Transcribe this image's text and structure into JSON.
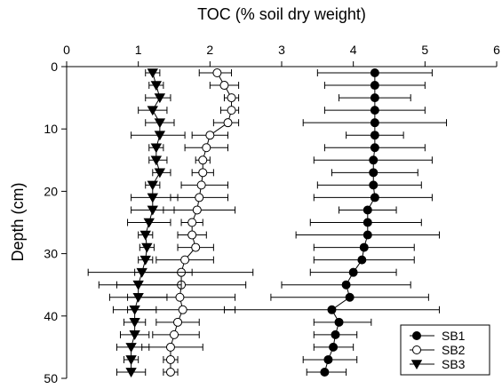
{
  "chart_data": {
    "type": "scatter",
    "xlabel": "TOC (% soil dry weight)",
    "ylabel": "Depth (cm)",
    "xlim": [
      0,
      6
    ],
    "ylim": [
      0,
      50
    ],
    "y_inverted": true,
    "x_axis_position": "top",
    "x_ticks": [
      "0",
      "1",
      "2",
      "3",
      "4",
      "5",
      "6"
    ],
    "y_ticks": [
      "0",
      "10",
      "20",
      "30",
      "40",
      "50"
    ],
    "grid": false,
    "legend_position": "bottom-right",
    "series": [
      {
        "name": "SB1",
        "marker": "filled-circle",
        "points": [
          {
            "depth": 1,
            "toc": 4.3,
            "err_low": 3.5,
            "err_high": 5.1
          },
          {
            "depth": 3,
            "toc": 4.3,
            "err_low": 3.6,
            "err_high": 5.0
          },
          {
            "depth": 5,
            "toc": 4.3,
            "err_low": 3.8,
            "err_high": 4.8
          },
          {
            "depth": 7,
            "toc": 4.3,
            "err_low": 3.6,
            "err_high": 5.0
          },
          {
            "depth": 9,
            "toc": 4.3,
            "err_low": 3.3,
            "err_high": 5.3
          },
          {
            "depth": 11,
            "toc": 4.3,
            "err_low": 3.9,
            "err_high": 4.7
          },
          {
            "depth": 13,
            "toc": 4.3,
            "err_low": 3.6,
            "err_high": 5.0
          },
          {
            "depth": 15,
            "toc": 4.28,
            "err_low": 3.45,
            "err_high": 5.1
          },
          {
            "depth": 17,
            "toc": 4.28,
            "err_low": 3.7,
            "err_high": 4.9
          },
          {
            "depth": 19,
            "toc": 4.28,
            "err_low": 3.5,
            "err_high": 4.95
          },
          {
            "depth": 21,
            "toc": 4.3,
            "err_low": 3.45,
            "err_high": 5.1
          },
          {
            "depth": 23,
            "toc": 4.2,
            "err_low": 3.8,
            "err_high": 4.6
          },
          {
            "depth": 25,
            "toc": 4.2,
            "err_low": 3.4,
            "err_high": 4.95
          },
          {
            "depth": 27,
            "toc": 4.2,
            "err_low": 3.2,
            "err_high": 5.2
          },
          {
            "depth": 29,
            "toc": 4.15,
            "err_low": 3.45,
            "err_high": 4.85
          },
          {
            "depth": 31,
            "toc": 4.12,
            "err_low": 3.45,
            "err_high": 4.85
          },
          {
            "depth": 33,
            "toc": 4.0,
            "err_low": 3.4,
            "err_high": 4.6
          },
          {
            "depth": 35,
            "toc": 3.9,
            "err_low": 3.0,
            "err_high": 4.8
          },
          {
            "depth": 37,
            "toc": 3.95,
            "err_low": 2.85,
            "err_high": 5.05
          },
          {
            "depth": 39,
            "toc": 3.7,
            "err_low": 2.2,
            "err_high": 5.2
          },
          {
            "depth": 41,
            "toc": 3.8,
            "err_low": 3.45,
            "err_high": 4.25
          },
          {
            "depth": 43,
            "toc": 3.75,
            "err_low": 3.45,
            "err_high": 4.05
          },
          {
            "depth": 45,
            "toc": 3.72,
            "err_low": 3.45,
            "err_high": 4.0
          },
          {
            "depth": 47,
            "toc": 3.65,
            "err_low": 3.3,
            "err_high": 4.05
          },
          {
            "depth": 49,
            "toc": 3.6,
            "err_low": 3.35,
            "err_high": 3.9
          }
        ]
      },
      {
        "name": "SB2",
        "marker": "open-circle",
        "points": [
          {
            "depth": 1,
            "toc": 2.1,
            "err_low": 1.85,
            "err_high": 2.3
          },
          {
            "depth": 3,
            "toc": 2.2,
            "err_low": 2.0,
            "err_high": 2.4
          },
          {
            "depth": 5,
            "toc": 2.3,
            "err_low": 2.2,
            "err_high": 2.4
          },
          {
            "depth": 7,
            "toc": 2.3,
            "err_low": 2.15,
            "err_high": 2.4
          },
          {
            "depth": 9,
            "toc": 2.25,
            "err_low": 2.05,
            "err_high": 2.4
          },
          {
            "depth": 11,
            "toc": 2.0,
            "err_low": 1.75,
            "err_high": 2.25
          },
          {
            "depth": 13,
            "toc": 1.95,
            "err_low": 1.65,
            "err_high": 2.25
          },
          {
            "depth": 15,
            "toc": 1.9,
            "err_low": 1.8,
            "err_high": 2.0
          },
          {
            "depth": 17,
            "toc": 1.9,
            "err_low": 1.75,
            "err_high": 2.05
          },
          {
            "depth": 19,
            "toc": 1.88,
            "err_low": 1.6,
            "err_high": 2.25
          },
          {
            "depth": 21,
            "toc": 1.85,
            "err_low": 1.45,
            "err_high": 2.25
          },
          {
            "depth": 23,
            "toc": 1.82,
            "err_low": 1.35,
            "err_high": 2.35
          },
          {
            "depth": 25,
            "toc": 1.75,
            "err_low": 1.6,
            "err_high": 1.9
          },
          {
            "depth": 27,
            "toc": 1.75,
            "err_low": 1.55,
            "err_high": 1.95
          },
          {
            "depth": 29,
            "toc": 1.8,
            "err_low": 1.55,
            "err_high": 2.05
          },
          {
            "depth": 31,
            "toc": 1.65,
            "err_low": 1.25,
            "err_high": 2.05
          },
          {
            "depth": 33,
            "toc": 1.6,
            "err_low": 0.95,
            "err_high": 2.6
          },
          {
            "depth": 35,
            "toc": 1.6,
            "err_low": 0.7,
            "err_high": 2.5
          },
          {
            "depth": 37,
            "toc": 1.58,
            "err_low": 0.85,
            "err_high": 2.35
          },
          {
            "depth": 39,
            "toc": 1.62,
            "err_low": 0.85,
            "err_high": 2.35
          },
          {
            "depth": 41,
            "toc": 1.55,
            "err_low": 1.25,
            "err_high": 1.85
          },
          {
            "depth": 43,
            "toc": 1.5,
            "err_low": 1.2,
            "err_high": 1.85
          },
          {
            "depth": 45,
            "toc": 1.45,
            "err_low": 1.05,
            "err_high": 1.9
          },
          {
            "depth": 47,
            "toc": 1.45,
            "err_low": 1.35,
            "err_high": 1.55
          },
          {
            "depth": 49,
            "toc": 1.45,
            "err_low": 1.35,
            "err_high": 1.55
          }
        ]
      },
      {
        "name": "SB3",
        "marker": "filled-triangle-down",
        "points": [
          {
            "depth": 1,
            "toc": 1.2,
            "err_low": 1.1,
            "err_high": 1.3
          },
          {
            "depth": 3,
            "toc": 1.25,
            "err_low": 1.15,
            "err_high": 1.35
          },
          {
            "depth": 5,
            "toc": 1.3,
            "err_low": 1.1,
            "err_high": 1.45
          },
          {
            "depth": 7,
            "toc": 1.2,
            "err_low": 1.0,
            "err_high": 1.4
          },
          {
            "depth": 9,
            "toc": 1.3,
            "err_low": 1.1,
            "err_high": 1.5
          },
          {
            "depth": 11,
            "toc": 1.3,
            "err_low": 0.9,
            "err_high": 1.65
          },
          {
            "depth": 13,
            "toc": 1.25,
            "err_low": 1.15,
            "err_high": 1.35
          },
          {
            "depth": 15,
            "toc": 1.25,
            "err_low": 1.15,
            "err_high": 1.4
          },
          {
            "depth": 17,
            "toc": 1.3,
            "err_low": 1.2,
            "err_high": 1.45
          },
          {
            "depth": 19,
            "toc": 1.2,
            "err_low": 1.1,
            "err_high": 1.3
          },
          {
            "depth": 21,
            "toc": 1.2,
            "err_low": 0.9,
            "err_high": 1.55
          },
          {
            "depth": 23,
            "toc": 1.2,
            "err_low": 0.9,
            "err_high": 1.5
          },
          {
            "depth": 25,
            "toc": 1.15,
            "err_low": 0.85,
            "err_high": 1.45
          },
          {
            "depth": 27,
            "toc": 1.1,
            "err_low": 1.0,
            "err_high": 1.2
          },
          {
            "depth": 29,
            "toc": 1.12,
            "err_low": 1.02,
            "err_high": 1.22
          },
          {
            "depth": 31,
            "toc": 1.1,
            "err_low": 1.0,
            "err_high": 1.2
          },
          {
            "depth": 33,
            "toc": 1.05,
            "err_low": 0.3,
            "err_high": 1.75
          },
          {
            "depth": 35,
            "toc": 1.0,
            "err_low": 0.45,
            "err_high": 1.6
          },
          {
            "depth": 37,
            "toc": 1.0,
            "err_low": 0.6,
            "err_high": 1.4
          },
          {
            "depth": 39,
            "toc": 0.95,
            "err_low": 0.65,
            "err_high": 1.25
          },
          {
            "depth": 41,
            "toc": 0.95,
            "err_low": 0.8,
            "err_high": 1.1
          },
          {
            "depth": 43,
            "toc": 0.95,
            "err_low": 0.75,
            "err_high": 1.15
          },
          {
            "depth": 45,
            "toc": 0.9,
            "err_low": 0.7,
            "err_high": 1.15
          },
          {
            "depth": 47,
            "toc": 0.9,
            "err_low": 0.8,
            "err_high": 1.0
          },
          {
            "depth": 49,
            "toc": 0.9,
            "err_low": 0.7,
            "err_high": 1.1
          }
        ]
      }
    ]
  }
}
